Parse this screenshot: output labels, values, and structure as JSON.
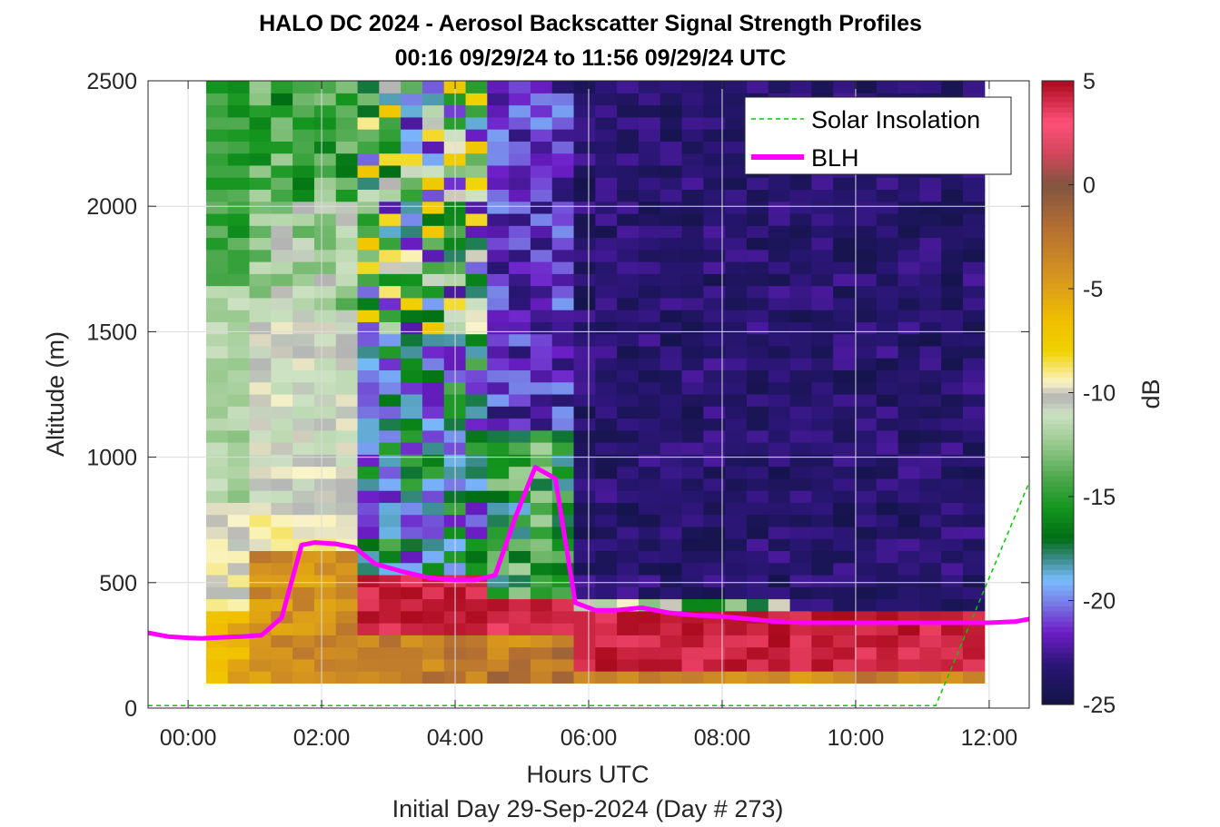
{
  "chart_data": {
    "type": "heatmap",
    "title": "HALO DC 2024 - Aerosol Backscatter Signal Strength Profiles",
    "subtitle": "00:16 09/29/24 to 11:56 09/29/24  UTC",
    "xlabel": "Hours UTC",
    "footer": "Initial Day 29-Sep-2024 (Day # 273)",
    "ylabel": "Altitude (m)",
    "colorbar_label": "dB",
    "xlim": [
      -0.6,
      12.6
    ],
    "ylim": [
      0,
      2500
    ],
    "x_ticks": [
      0,
      2,
      4,
      6,
      8,
      10,
      12
    ],
    "x_tick_labels": [
      "00:00",
      "02:00",
      "04:00",
      "06:00",
      "08:00",
      "10:00",
      "12:00"
    ],
    "y_ticks": [
      0,
      500,
      1000,
      1500,
      2000,
      2500
    ],
    "y_tick_labels": [
      "0",
      "500",
      "1000",
      "1500",
      "2000",
      "2500"
    ],
    "clim": [
      -25,
      5
    ],
    "colorbar_ticks": [
      5,
      0,
      -5,
      -10,
      -15,
      -20,
      -25
    ],
    "colorbar_tick_labels": [
      "5",
      "0",
      "-5",
      "-10",
      "-15",
      "-20",
      "-25"
    ],
    "grid": true,
    "legend_position": "top-right",
    "legend": [
      {
        "name": "Solar Insolation",
        "style": "dashed",
        "color": "#00cc00"
      },
      {
        "name": "BLH",
        "style": "solid",
        "color": "#ff00ff"
      }
    ],
    "heatmap": {
      "x_start_hour": 0.27,
      "x_end_hour": 11.93,
      "y_start_m": 100,
      "y_end_m": 2500,
      "n_columns": 36,
      "n_rows": 50,
      "segments": [
        {
          "t0": 0.27,
          "t1": 1.0,
          "profile": "early"
        },
        {
          "t0": 1.0,
          "t1": 2.6,
          "profile": "cloudy_green"
        },
        {
          "t0": 2.6,
          "t1": 4.4,
          "profile": "mixed"
        },
        {
          "t0": 4.4,
          "t1": 5.9,
          "profile": "convective"
        },
        {
          "t0": 5.9,
          "t1": 11.93,
          "profile": "stable"
        }
      ]
    },
    "series": [
      {
        "name": "BLH",
        "x": [
          -0.6,
          -0.3,
          0.0,
          0.2,
          0.5,
          0.8,
          1.1,
          1.4,
          1.7,
          1.9,
          2.2,
          2.5,
          2.8,
          3.2,
          3.6,
          4.0,
          4.3,
          4.6,
          4.9,
          5.2,
          5.5,
          5.8,
          6.1,
          6.4,
          6.8,
          7.2,
          7.6,
          8.0,
          8.4,
          8.8,
          9.2,
          9.6,
          10.0,
          10.4,
          10.8,
          11.2,
          11.6,
          12.0,
          12.4,
          12.6
        ],
        "y": [
          300,
          285,
          280,
          278,
          282,
          285,
          290,
          360,
          650,
          660,
          655,
          640,
          575,
          545,
          520,
          510,
          510,
          530,
          760,
          960,
          915,
          420,
          390,
          390,
          400,
          380,
          370,
          365,
          355,
          345,
          340,
          340,
          340,
          340,
          340,
          340,
          340,
          340,
          345,
          355
        ]
      },
      {
        "name": "Solar Insolation",
        "x": [
          -0.6,
          11.2,
          12.6
        ],
        "y": [
          10,
          10,
          900
        ]
      }
    ]
  }
}
